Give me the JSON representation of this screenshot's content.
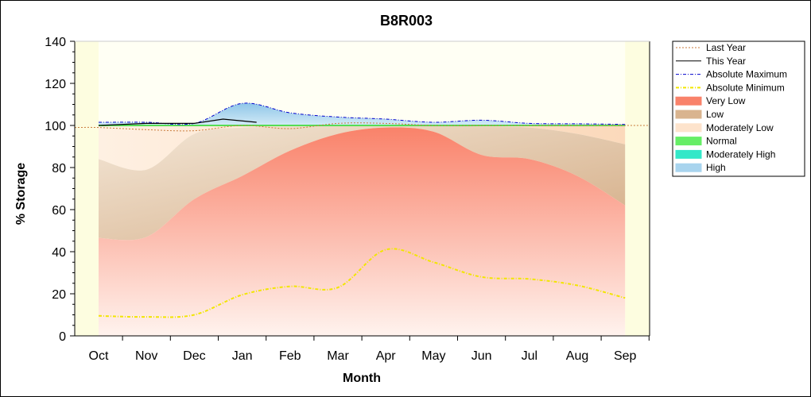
{
  "chart_data": {
    "type": "area",
    "title": "B8R003",
    "xlabel": "Month",
    "ylabel": "% Storage",
    "ylim": [
      0,
      140
    ],
    "yticks": [
      0,
      20,
      40,
      60,
      80,
      100,
      120,
      140
    ],
    "categories": [
      "Oct",
      "Nov",
      "Dec",
      "Jan",
      "Feb",
      "Mar",
      "Apr",
      "May",
      "Jun",
      "Jul",
      "Aug",
      "Sep"
    ],
    "legend_position": "right",
    "legend": [
      {
        "key": "last_year",
        "label": "Last Year",
        "kind": "line",
        "color": "#c87a3a",
        "dash": "2,2"
      },
      {
        "key": "this_year",
        "label": "This Year",
        "kind": "line",
        "color": "#000000",
        "dash": ""
      },
      {
        "key": "abs_max",
        "label": "Absolute Maximum",
        "kind": "line",
        "color": "#0000cc",
        "dash": "4,2,1,2"
      },
      {
        "key": "abs_min",
        "label": "Absolute Minimum",
        "kind": "line",
        "color": "#f2e600",
        "dash": "4,2,1,2"
      },
      {
        "key": "very_low",
        "label": "Very Low",
        "kind": "band",
        "color": "#f9826a"
      },
      {
        "key": "low",
        "label": "Low",
        "kind": "band",
        "color": "#d9b48f"
      },
      {
        "key": "moderately_low",
        "label": "Moderately Low",
        "kind": "band",
        "color": "#fde3cc"
      },
      {
        "key": "normal",
        "label": "Normal",
        "kind": "band",
        "color": "#66ee66"
      },
      {
        "key": "moderately_high",
        "label": "Moderately High",
        "kind": "band",
        "color": "#33e8c8"
      },
      {
        "key": "high",
        "label": "High",
        "kind": "band",
        "color": "#a8d4ee"
      }
    ],
    "series": {
      "absolute_minimum": [
        9.5,
        9,
        10,
        19.5,
        23.5,
        23,
        41,
        35,
        28,
        27,
        24,
        18
      ],
      "very_low_top": [
        46.5,
        47,
        65,
        76,
        88,
        96,
        99,
        97,
        86,
        84,
        76,
        62
      ],
      "low_top": [
        84,
        79,
        96,
        99,
        99.5,
        99.8,
        100,
        100,
        99.5,
        99,
        96,
        91
      ],
      "moderately_low_top": [
        100,
        100,
        100,
        100,
        100,
        100,
        100,
        100,
        100,
        100,
        100,
        100
      ],
      "absolute_maximum": [
        101.5,
        101.5,
        101,
        110.5,
        106,
        104,
        103,
        101.5,
        102.5,
        101,
        100.8,
        100.5
      ],
      "last_year": [
        99,
        98,
        97.5,
        100,
        98.5,
        101,
        101,
        100,
        100,
        100,
        100,
        100
      ],
      "this_year": [
        100,
        101,
        101,
        103,
        101.5
      ]
    },
    "this_year_x": [
      0,
      1,
      2,
      2.6,
      3.3
    ]
  }
}
